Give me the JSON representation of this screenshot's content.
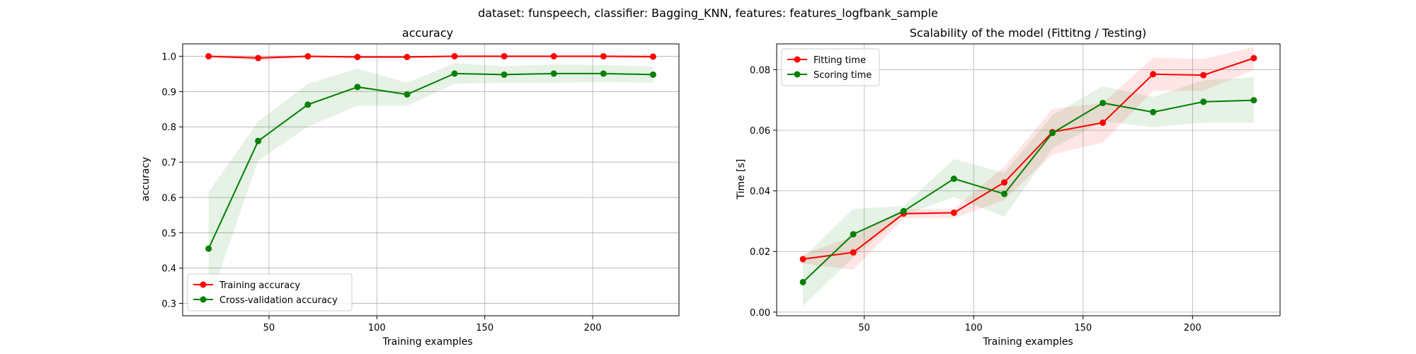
{
  "figure": {
    "suptitle": "dataset: funspeech, classifier: Bagging_KNN, features: features_logfbank_sample"
  },
  "colors": {
    "train": "#ff0000",
    "test": "#008000"
  },
  "chart_data": [
    {
      "type": "line",
      "title": "accuracy",
      "xlabel": "Training examples",
      "ylabel": "accuracy",
      "xlim": [
        10,
        240
      ],
      "ylim": [
        0.265,
        1.035
      ],
      "xticks": [
        50,
        100,
        150,
        200
      ],
      "yticks": [
        0.3,
        0.4,
        0.5,
        0.6,
        0.7,
        0.8,
        0.9,
        1.0
      ],
      "ytick_decimals": 1,
      "grid": true,
      "legend_loc": "lower left",
      "x": [
        22,
        45,
        68,
        91,
        114,
        136,
        159,
        182,
        205,
        228
      ],
      "series": [
        {
          "name": "Training accuracy",
          "color": "#ff0000",
          "values": [
            1.0,
            0.995,
            1.0,
            0.998,
            0.998,
            1.0,
            1.0,
            1.0,
            1.0,
            0.999
          ],
          "lower": [
            0.995,
            0.988,
            0.996,
            0.994,
            0.994,
            0.997,
            0.997,
            0.997,
            0.996,
            0.993
          ],
          "upper": [
            1.005,
            1.002,
            1.004,
            1.002,
            1.002,
            1.003,
            1.003,
            1.003,
            1.004,
            1.005
          ]
        },
        {
          "name": "Cross-validation accuracy",
          "color": "#008000",
          "values": [
            0.455,
            0.76,
            0.863,
            0.913,
            0.892,
            0.951,
            0.948,
            0.951,
            0.951,
            0.948
          ],
          "lower": [
            0.3,
            0.705,
            0.8,
            0.86,
            0.86,
            0.922,
            0.925,
            0.925,
            0.927,
            0.925
          ],
          "upper": [
            0.615,
            0.815,
            0.922,
            0.965,
            0.925,
            0.98,
            0.972,
            0.977,
            0.975,
            0.971
          ]
        }
      ]
    },
    {
      "type": "line",
      "title": "Scalability of the model (Fittitng / Testing)",
      "xlabel": "Training examples",
      "ylabel": "Time [s]",
      "xlim": [
        10,
        240
      ],
      "ylim": [
        -0.0012,
        0.0885
      ],
      "xticks": [
        50,
        100,
        150,
        200
      ],
      "yticks": [
        0.0,
        0.02,
        0.04,
        0.06,
        0.08
      ],
      "ytick_decimals": 2,
      "grid": true,
      "legend_loc": "upper left",
      "x": [
        22,
        45,
        68,
        91,
        114,
        136,
        159,
        182,
        205,
        228
      ],
      "series": [
        {
          "name": "Fitting time",
          "color": "#ff0000",
          "values": [
            0.0175,
            0.0197,
            0.0325,
            0.0328,
            0.0428,
            0.0594,
            0.0625,
            0.0785,
            0.0782,
            0.0838
          ],
          "lower": [
            0.016,
            0.014,
            0.031,
            0.031,
            0.037,
            0.052,
            0.056,
            0.073,
            0.073,
            0.08
          ],
          "upper": [
            0.019,
            0.025,
            0.034,
            0.034,
            0.048,
            0.067,
            0.069,
            0.084,
            0.0835,
            0.0875
          ]
        },
        {
          "name": "Scoring time",
          "color": "#008000",
          "values": [
            0.0099,
            0.0257,
            0.0333,
            0.044,
            0.039,
            0.0591,
            0.069,
            0.066,
            0.0694,
            0.0699
          ],
          "lower": [
            0.002,
            0.018,
            0.032,
            0.038,
            0.0315,
            0.054,
            0.063,
            0.061,
            0.0625,
            0.0625
          ],
          "upper": [
            0.018,
            0.034,
            0.035,
            0.0505,
            0.046,
            0.065,
            0.0745,
            0.071,
            0.0765,
            0.0775
          ]
        }
      ]
    }
  ]
}
